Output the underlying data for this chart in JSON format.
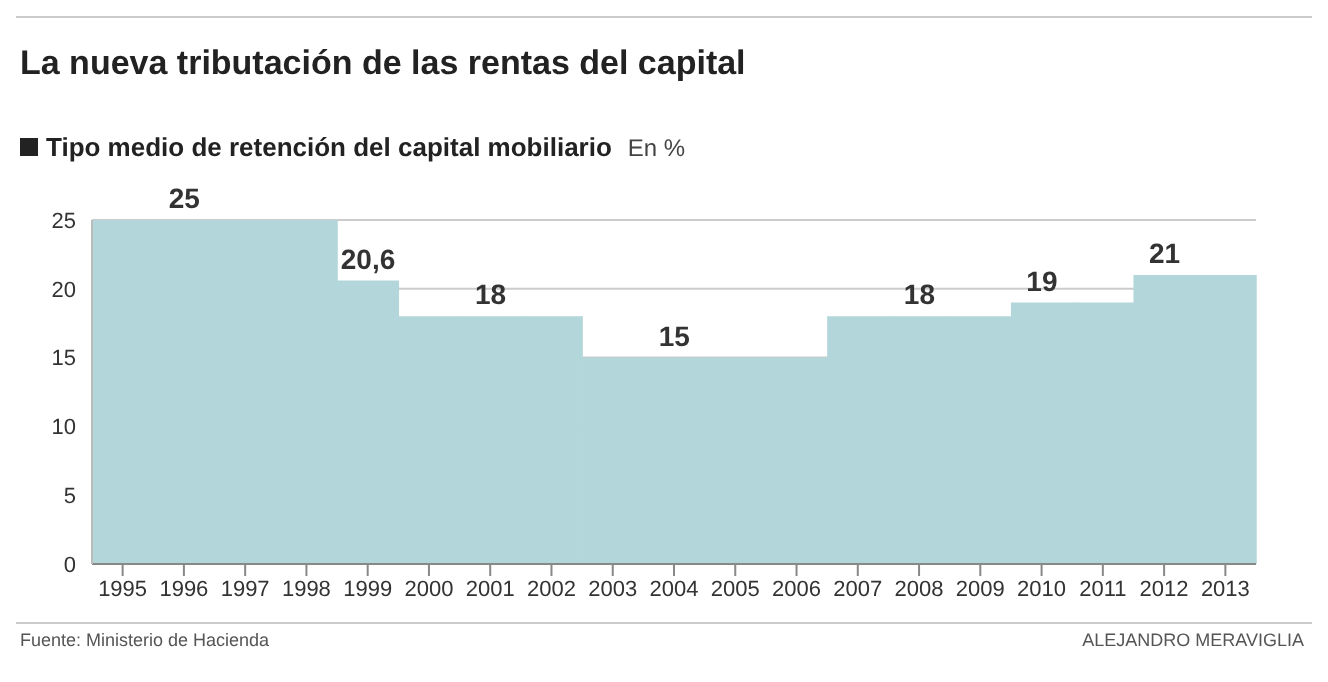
{
  "chart_data": {
    "type": "bar",
    "title": "La nueva tributación de las rentas del capital",
    "subtitle": "Tipo medio de retención del capital mobiliario",
    "ylabel": "En %",
    "categories": [
      "1995",
      "1996",
      "1997",
      "1998",
      "1999",
      "2000",
      "2001",
      "2002",
      "2003",
      "2004",
      "2005",
      "2006",
      "2007",
      "2008",
      "2009",
      "2010",
      "2011",
      "2012",
      "2013"
    ],
    "values": [
      25,
      25,
      25,
      25,
      20.6,
      18,
      18,
      18,
      15,
      15,
      15,
      15,
      18,
      18,
      18,
      19,
      19,
      21,
      21
    ],
    "value_labels": [
      null,
      "25",
      null,
      null,
      "20,6",
      null,
      "18",
      null,
      null,
      "15",
      null,
      null,
      null,
      "18",
      null,
      "19",
      null,
      "21",
      null
    ],
    "color": "#b2d6da",
    "ylim": [
      0,
      25
    ],
    "yticks": [
      0,
      5,
      10,
      15,
      20,
      25
    ],
    "grid": "y",
    "annotations": [
      "Fuente: Ministerio de Hacienda",
      "ALEJANDRO MERAVIGLIA"
    ]
  }
}
